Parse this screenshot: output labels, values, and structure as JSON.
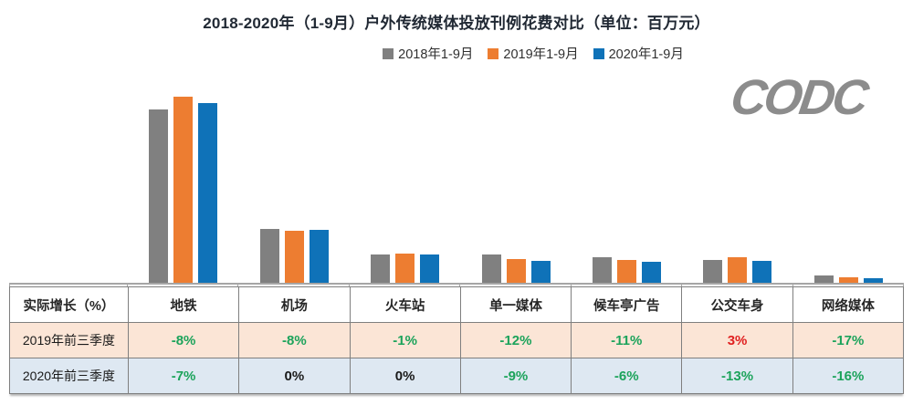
{
  "header": {
    "title": "2018-2020年（1-9月）户外传统媒体投放刊例花费对比（单位：百万元）"
  },
  "logo": {
    "text": "CODC",
    "color": "#8C8C8C"
  },
  "colors": {
    "series_2018": "#808080",
    "series_2019": "#ED7D31",
    "series_2020": "#0F72B8",
    "axis_line": "#A6A6A6",
    "table_border": "#7F7F7F",
    "row_2019_bg": "#FBE5D6",
    "row_2020_bg": "#DEE8F2",
    "negative_green": "#1CA35B",
    "positive_red": "#E02020",
    "neutral_black": "#1A1A1A"
  },
  "chart_data": {
    "type": "bar",
    "title": "2018-2020年（1-9月）户外传统媒体投放刊例花费对比（单位：百万元）",
    "categories": [
      "地铁",
      "机场",
      "火车站",
      "单一媒体",
      "候车亭广告",
      "公交车身",
      "网络媒体"
    ],
    "series": [
      {
        "name": "2018年1-9月",
        "color": "#808080",
        "values": [
          93,
          29,
          15.4,
          15.2,
          13.8,
          12.1,
          3.9
        ]
      },
      {
        "name": "2019年1-9月",
        "color": "#ED7D31",
        "values": [
          100,
          28.2,
          15.8,
          12.8,
          12.4,
          13.8,
          3.1
        ]
      },
      {
        "name": "2020年1-9月",
        "color": "#0F72B8",
        "values": [
          96.5,
          28.5,
          15.4,
          11.6,
          11.1,
          11.6,
          2.5
        ]
      }
    ],
    "xlabel": "",
    "ylabel": "",
    "ylim": [
      0,
      105
    ],
    "value_scale": "relative index, tallest bar = 100 (no value axis or data labels shown)",
    "grid": false,
    "legend_position": "top-center"
  },
  "table": {
    "corner_label": "实际增长（%）",
    "columns": [
      "地铁",
      "机场",
      "火车站",
      "单一媒体",
      "候车亭广告",
      "公交车身",
      "网络媒体"
    ],
    "rows": [
      {
        "label": "2019年前三季度",
        "bg": "#FBE5D6",
        "values": [
          {
            "text": "-8%",
            "color": "#1CA35B"
          },
          {
            "text": "-8%",
            "color": "#1CA35B"
          },
          {
            "text": "-1%",
            "color": "#1CA35B"
          },
          {
            "text": "-12%",
            "color": "#1CA35B"
          },
          {
            "text": "-11%",
            "color": "#1CA35B"
          },
          {
            "text": "3%",
            "color": "#E02020"
          },
          {
            "text": "-17%",
            "color": "#1CA35B"
          }
        ]
      },
      {
        "label": "2020年前三季度",
        "bg": "#DEE8F2",
        "values": [
          {
            "text": "-7%",
            "color": "#1CA35B"
          },
          {
            "text": "0%",
            "color": "#1A1A1A"
          },
          {
            "text": "0%",
            "color": "#1A1A1A"
          },
          {
            "text": "-9%",
            "color": "#1CA35B"
          },
          {
            "text": "-6%",
            "color": "#1CA35B"
          },
          {
            "text": "-13%",
            "color": "#1CA35B"
          },
          {
            "text": "-16%",
            "color": "#1CA35B"
          }
        ]
      }
    ]
  }
}
